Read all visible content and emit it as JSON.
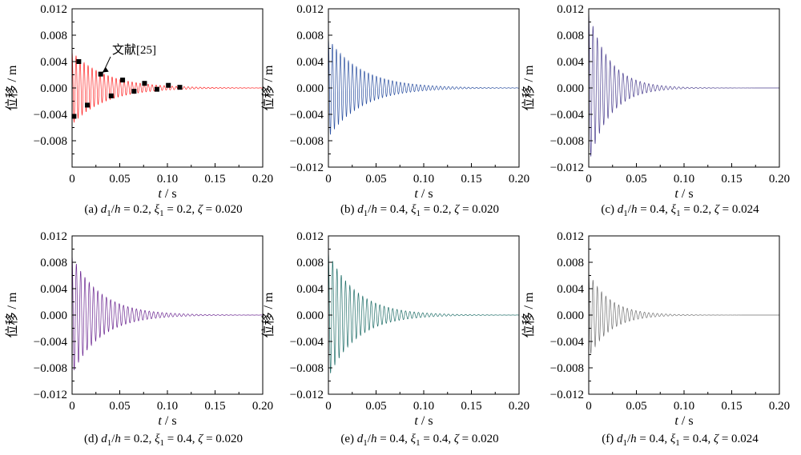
{
  "chart_data": [
    {
      "type": "line",
      "panel_label": "(a)",
      "caption_param_a": "0.2",
      "caption_param_b": "0.2",
      "caption_param_c": "0.020",
      "xlabel": "t",
      "xunit": "s",
      "ylabel": "位移",
      "yunit": "m",
      "xlim": [
        0,
        0.2
      ],
      "ylim": [
        -0.012,
        0.012
      ],
      "x_ticks": [
        "0",
        "0.05",
        "0.10",
        "0.15",
        "0.20"
      ],
      "y_ticks": [
        "-0.012",
        "-0.008",
        "-0.004",
        "0.000",
        "0.004",
        "0.008",
        "0.012"
      ],
      "show_y_min_tick_label": false,
      "series_color": "#ff2020",
      "response": {
        "amplitude": 0.0055,
        "decay_time_s": 0.035,
        "period_s": 0.0042
      },
      "annotation": "文献[25]",
      "reference_points": [
        {
          "x": 0.002,
          "y": -0.0043
        },
        {
          "x": 0.007,
          "y": 0.004
        },
        {
          "x": 0.016,
          "y": -0.0026
        },
        {
          "x": 0.03,
          "y": 0.0021
        },
        {
          "x": 0.041,
          "y": -0.0012
        },
        {
          "x": 0.053,
          "y": 0.0012
        },
        {
          "x": 0.065,
          "y": -0.0005
        },
        {
          "x": 0.076,
          "y": 0.0007
        },
        {
          "x": 0.089,
          "y": -0.0002
        },
        {
          "x": 0.101,
          "y": 0.0004
        },
        {
          "x": 0.113,
          "y": 0.0001
        }
      ]
    },
    {
      "type": "line",
      "panel_label": "(b)",
      "caption_param_a": "0.4",
      "caption_param_b": "0.2",
      "caption_param_c": "0.020",
      "xlabel": "t",
      "xunit": "s",
      "ylabel": "位移",
      "yunit": "m",
      "xlim": [
        0,
        0.2
      ],
      "ylim": [
        -0.012,
        0.012
      ],
      "x_ticks": [
        "0",
        "0.05",
        "0.10",
        "0.15",
        "0.20"
      ],
      "y_ticks": [
        "-0.012",
        "-0.008",
        "-0.004",
        "0.000",
        "0.004",
        "0.008",
        "0.012"
      ],
      "show_y_min_tick_label": true,
      "series_color": "#2a4fa0",
      "response": {
        "amplitude": 0.0075,
        "decay_time_s": 0.035,
        "period_s": 0.0042
      }
    },
    {
      "type": "line",
      "panel_label": "(c)",
      "caption_param_a": "0.4",
      "caption_param_b": "0.2",
      "caption_param_c": "0.024",
      "xlabel": "t",
      "xunit": "s",
      "ylabel": "位移",
      "yunit": "m",
      "xlim": [
        0,
        0.2
      ],
      "ylim": [
        -0.012,
        0.012
      ],
      "x_ticks": [
        "0",
        "0.05",
        "0.10",
        "0.15",
        "0.20"
      ],
      "y_ticks": [
        "-0.012",
        "-0.008",
        "-0.004",
        "0.000",
        "0.004",
        "0.008",
        "0.012"
      ],
      "show_y_min_tick_label": true,
      "series_color": "#4b3f8f",
      "response": {
        "amplitude": 0.0115,
        "decay_time_s": 0.022,
        "period_s": 0.0045
      }
    },
    {
      "type": "line",
      "panel_label": "(d)",
      "caption_param_a": "0.2",
      "caption_param_b": "0.4",
      "caption_param_c": "0.020",
      "xlabel": "t",
      "xunit": "s",
      "ylabel": "位移",
      "yunit": "m",
      "xlim": [
        0,
        0.2
      ],
      "ylim": [
        -0.012,
        0.012
      ],
      "x_ticks": [
        "0",
        "0.05",
        "0.10",
        "0.15",
        "0.20"
      ],
      "y_ticks": [
        "-0.012",
        "-0.008",
        "-0.004",
        "0.000",
        "0.004",
        "0.008",
        "0.012"
      ],
      "show_y_min_tick_label": true,
      "series_color": "#6a2590",
      "response": {
        "amplitude": 0.009,
        "decay_time_s": 0.03,
        "period_s": 0.0045
      }
    },
    {
      "type": "line",
      "panel_label": "(e)",
      "caption_param_a": "0.4",
      "caption_param_b": "0.4",
      "caption_param_c": "0.020",
      "xlabel": "t",
      "xunit": "s",
      "ylabel": "位移",
      "yunit": "m",
      "xlim": [
        0,
        0.2
      ],
      "ylim": [
        -0.012,
        0.012
      ],
      "x_ticks": [
        "0",
        "0.05",
        "0.10",
        "0.15",
        "0.20"
      ],
      "y_ticks": [
        "-0.012",
        "-0.008",
        "-0.004",
        "0.000",
        "0.004",
        "0.008",
        "0.012"
      ],
      "show_y_min_tick_label": true,
      "series_color": "#1f6e68",
      "response": {
        "amplitude": 0.0095,
        "decay_time_s": 0.03,
        "period_s": 0.0045
      }
    },
    {
      "type": "line",
      "panel_label": "(f)",
      "caption_param_a": "0.4",
      "caption_param_b": "0.4",
      "caption_param_c": "0.024",
      "xlabel": "t",
      "xunit": "s",
      "ylabel": "位移",
      "yunit": "m",
      "xlim": [
        0,
        0.2
      ],
      "ylim": [
        -0.012,
        0.012
      ],
      "x_ticks": [
        "0",
        "0.05",
        "0.10",
        "0.15",
        "0.20"
      ],
      "y_ticks": [
        "-0.012",
        "-0.008",
        "-0.004",
        "0.000",
        "0.004",
        "0.008",
        "0.012"
      ],
      "show_y_min_tick_label": true,
      "series_color": "#707070",
      "response": {
        "amplitude": 0.0065,
        "decay_time_s": 0.022,
        "period_s": 0.0045
      }
    }
  ]
}
